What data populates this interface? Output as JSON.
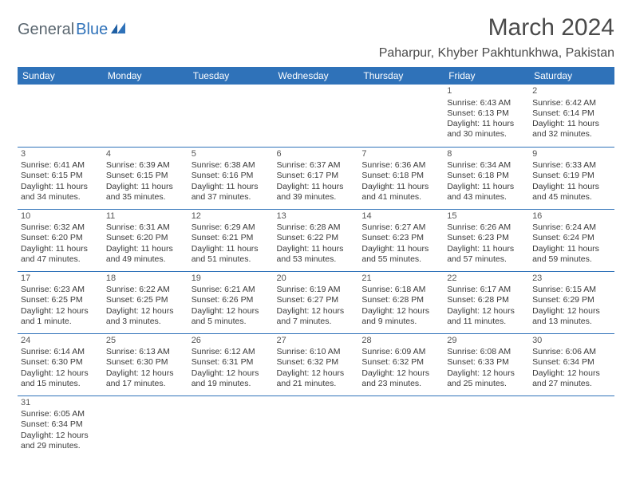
{
  "logo": {
    "text1": "General",
    "text2": "Blue"
  },
  "title": "March 2024",
  "location": "Paharpur, Khyber Pakhtunkhwa, Pakistan",
  "colors": {
    "header_bg": "#2f72b9",
    "header_text": "#ffffff",
    "border": "#2f72b9",
    "text": "#3a3a3a",
    "logo_gray": "#5b6770",
    "logo_blue": "#2f72b9",
    "page_bg": "#ffffff"
  },
  "fonts": {
    "title_size": 30,
    "location_size": 16,
    "header_size": 12,
    "cell_size": 10.5
  },
  "headers": [
    "Sunday",
    "Monday",
    "Tuesday",
    "Wednesday",
    "Thursday",
    "Friday",
    "Saturday"
  ],
  "weeks": [
    [
      null,
      null,
      null,
      null,
      null,
      {
        "d": "1",
        "sr": "Sunrise: 6:43 AM",
        "ss": "Sunset: 6:13 PM",
        "dl1": "Daylight: 11 hours",
        "dl2": "and 30 minutes."
      },
      {
        "d": "2",
        "sr": "Sunrise: 6:42 AM",
        "ss": "Sunset: 6:14 PM",
        "dl1": "Daylight: 11 hours",
        "dl2": "and 32 minutes."
      }
    ],
    [
      {
        "d": "3",
        "sr": "Sunrise: 6:41 AM",
        "ss": "Sunset: 6:15 PM",
        "dl1": "Daylight: 11 hours",
        "dl2": "and 34 minutes."
      },
      {
        "d": "4",
        "sr": "Sunrise: 6:39 AM",
        "ss": "Sunset: 6:15 PM",
        "dl1": "Daylight: 11 hours",
        "dl2": "and 35 minutes."
      },
      {
        "d": "5",
        "sr": "Sunrise: 6:38 AM",
        "ss": "Sunset: 6:16 PM",
        "dl1": "Daylight: 11 hours",
        "dl2": "and 37 minutes."
      },
      {
        "d": "6",
        "sr": "Sunrise: 6:37 AM",
        "ss": "Sunset: 6:17 PM",
        "dl1": "Daylight: 11 hours",
        "dl2": "and 39 minutes."
      },
      {
        "d": "7",
        "sr": "Sunrise: 6:36 AM",
        "ss": "Sunset: 6:18 PM",
        "dl1": "Daylight: 11 hours",
        "dl2": "and 41 minutes."
      },
      {
        "d": "8",
        "sr": "Sunrise: 6:34 AM",
        "ss": "Sunset: 6:18 PM",
        "dl1": "Daylight: 11 hours",
        "dl2": "and 43 minutes."
      },
      {
        "d": "9",
        "sr": "Sunrise: 6:33 AM",
        "ss": "Sunset: 6:19 PM",
        "dl1": "Daylight: 11 hours",
        "dl2": "and 45 minutes."
      }
    ],
    [
      {
        "d": "10",
        "sr": "Sunrise: 6:32 AM",
        "ss": "Sunset: 6:20 PM",
        "dl1": "Daylight: 11 hours",
        "dl2": "and 47 minutes."
      },
      {
        "d": "11",
        "sr": "Sunrise: 6:31 AM",
        "ss": "Sunset: 6:20 PM",
        "dl1": "Daylight: 11 hours",
        "dl2": "and 49 minutes."
      },
      {
        "d": "12",
        "sr": "Sunrise: 6:29 AM",
        "ss": "Sunset: 6:21 PM",
        "dl1": "Daylight: 11 hours",
        "dl2": "and 51 minutes."
      },
      {
        "d": "13",
        "sr": "Sunrise: 6:28 AM",
        "ss": "Sunset: 6:22 PM",
        "dl1": "Daylight: 11 hours",
        "dl2": "and 53 minutes."
      },
      {
        "d": "14",
        "sr": "Sunrise: 6:27 AM",
        "ss": "Sunset: 6:23 PM",
        "dl1": "Daylight: 11 hours",
        "dl2": "and 55 minutes."
      },
      {
        "d": "15",
        "sr": "Sunrise: 6:26 AM",
        "ss": "Sunset: 6:23 PM",
        "dl1": "Daylight: 11 hours",
        "dl2": "and 57 minutes."
      },
      {
        "d": "16",
        "sr": "Sunrise: 6:24 AM",
        "ss": "Sunset: 6:24 PM",
        "dl1": "Daylight: 11 hours",
        "dl2": "and 59 minutes."
      }
    ],
    [
      {
        "d": "17",
        "sr": "Sunrise: 6:23 AM",
        "ss": "Sunset: 6:25 PM",
        "dl1": "Daylight: 12 hours",
        "dl2": "and 1 minute."
      },
      {
        "d": "18",
        "sr": "Sunrise: 6:22 AM",
        "ss": "Sunset: 6:25 PM",
        "dl1": "Daylight: 12 hours",
        "dl2": "and 3 minutes."
      },
      {
        "d": "19",
        "sr": "Sunrise: 6:21 AM",
        "ss": "Sunset: 6:26 PM",
        "dl1": "Daylight: 12 hours",
        "dl2": "and 5 minutes."
      },
      {
        "d": "20",
        "sr": "Sunrise: 6:19 AM",
        "ss": "Sunset: 6:27 PM",
        "dl1": "Daylight: 12 hours",
        "dl2": "and 7 minutes."
      },
      {
        "d": "21",
        "sr": "Sunrise: 6:18 AM",
        "ss": "Sunset: 6:28 PM",
        "dl1": "Daylight: 12 hours",
        "dl2": "and 9 minutes."
      },
      {
        "d": "22",
        "sr": "Sunrise: 6:17 AM",
        "ss": "Sunset: 6:28 PM",
        "dl1": "Daylight: 12 hours",
        "dl2": "and 11 minutes."
      },
      {
        "d": "23",
        "sr": "Sunrise: 6:15 AM",
        "ss": "Sunset: 6:29 PM",
        "dl1": "Daylight: 12 hours",
        "dl2": "and 13 minutes."
      }
    ],
    [
      {
        "d": "24",
        "sr": "Sunrise: 6:14 AM",
        "ss": "Sunset: 6:30 PM",
        "dl1": "Daylight: 12 hours",
        "dl2": "and 15 minutes."
      },
      {
        "d": "25",
        "sr": "Sunrise: 6:13 AM",
        "ss": "Sunset: 6:30 PM",
        "dl1": "Daylight: 12 hours",
        "dl2": "and 17 minutes."
      },
      {
        "d": "26",
        "sr": "Sunrise: 6:12 AM",
        "ss": "Sunset: 6:31 PM",
        "dl1": "Daylight: 12 hours",
        "dl2": "and 19 minutes."
      },
      {
        "d": "27",
        "sr": "Sunrise: 6:10 AM",
        "ss": "Sunset: 6:32 PM",
        "dl1": "Daylight: 12 hours",
        "dl2": "and 21 minutes."
      },
      {
        "d": "28",
        "sr": "Sunrise: 6:09 AM",
        "ss": "Sunset: 6:32 PM",
        "dl1": "Daylight: 12 hours",
        "dl2": "and 23 minutes."
      },
      {
        "d": "29",
        "sr": "Sunrise: 6:08 AM",
        "ss": "Sunset: 6:33 PM",
        "dl1": "Daylight: 12 hours",
        "dl2": "and 25 minutes."
      },
      {
        "d": "30",
        "sr": "Sunrise: 6:06 AM",
        "ss": "Sunset: 6:34 PM",
        "dl1": "Daylight: 12 hours",
        "dl2": "and 27 minutes."
      }
    ],
    [
      {
        "d": "31",
        "sr": "Sunrise: 6:05 AM",
        "ss": "Sunset: 6:34 PM",
        "dl1": "Daylight: 12 hours",
        "dl2": "and 29 minutes."
      },
      null,
      null,
      null,
      null,
      null,
      null
    ]
  ]
}
